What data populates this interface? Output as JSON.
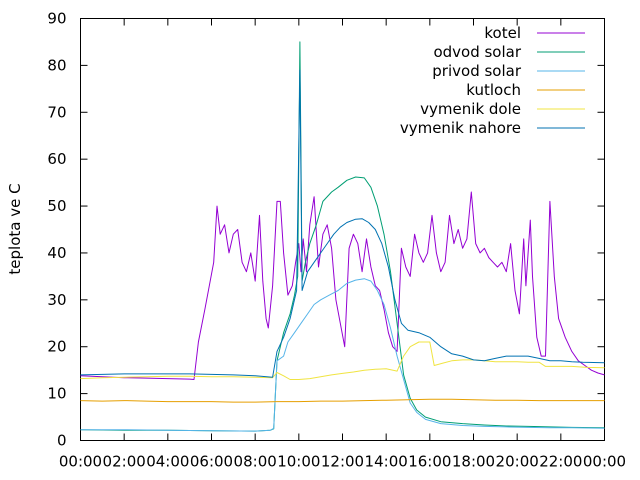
{
  "chart_data": {
    "type": "line",
    "title": "",
    "xlabel": "",
    "ylabel": "teplota ve C",
    "xlim": [
      0,
      24
    ],
    "ylim": [
      0,
      90
    ],
    "grid": false,
    "legend_position": "top-right",
    "x_ticks": [
      "00:00",
      "02:00",
      "04:00",
      "06:00",
      "08:00",
      "10:00",
      "12:00",
      "14:00",
      "16:00",
      "18:00",
      "20:00",
      "22:00",
      "00:00"
    ],
    "y_ticks": [
      "0",
      "10",
      "20",
      "30",
      "40",
      "50",
      "60",
      "70",
      "80",
      "90"
    ],
    "series": [
      {
        "name": "kotel",
        "color": "#9400d3",
        "points": [
          [
            0,
            13.8
          ],
          [
            1,
            13.6
          ],
          [
            2,
            13.4
          ],
          [
            3,
            13.3
          ],
          [
            4,
            13.2
          ],
          [
            5,
            13.1
          ],
          [
            5.2,
            13.0
          ],
          [
            5.4,
            21
          ],
          [
            5.7,
            28
          ],
          [
            5.9,
            33
          ],
          [
            6.1,
            38
          ],
          [
            6.25,
            50
          ],
          [
            6.4,
            44
          ],
          [
            6.6,
            46
          ],
          [
            6.8,
            40
          ],
          [
            7.0,
            44
          ],
          [
            7.2,
            45
          ],
          [
            7.4,
            38
          ],
          [
            7.6,
            36
          ],
          [
            7.8,
            40
          ],
          [
            8.0,
            34
          ],
          [
            8.2,
            48
          ],
          [
            8.35,
            34
          ],
          [
            8.5,
            26
          ],
          [
            8.6,
            24
          ],
          [
            8.8,
            33
          ],
          [
            9.0,
            51
          ],
          [
            9.15,
            51
          ],
          [
            9.3,
            40
          ],
          [
            9.5,
            31
          ],
          [
            9.7,
            33
          ],
          [
            9.85,
            38
          ],
          [
            10.0,
            42
          ],
          [
            10.1,
            36
          ],
          [
            10.2,
            43
          ],
          [
            10.35,
            36
          ],
          [
            10.5,
            46
          ],
          [
            10.7,
            52
          ],
          [
            10.9,
            37
          ],
          [
            11.1,
            44
          ],
          [
            11.3,
            46
          ],
          [
            11.5,
            41
          ],
          [
            11.7,
            30
          ],
          [
            11.9,
            25
          ],
          [
            12.1,
            20
          ],
          [
            12.3,
            41
          ],
          [
            12.5,
            44
          ],
          [
            12.7,
            42
          ],
          [
            12.9,
            36
          ],
          [
            13.1,
            43
          ],
          [
            13.3,
            37
          ],
          [
            13.5,
            33
          ],
          [
            13.7,
            32
          ],
          [
            13.9,
            28
          ],
          [
            14.1,
            23
          ],
          [
            14.3,
            20
          ],
          [
            14.5,
            19
          ],
          [
            14.7,
            41
          ],
          [
            14.9,
            37
          ],
          [
            15.1,
            35
          ],
          [
            15.3,
            44
          ],
          [
            15.5,
            40
          ],
          [
            15.7,
            38
          ],
          [
            15.9,
            40
          ],
          [
            16.1,
            48
          ],
          [
            16.3,
            40
          ],
          [
            16.5,
            36
          ],
          [
            16.7,
            38
          ],
          [
            16.9,
            48
          ],
          [
            17.1,
            42
          ],
          [
            17.3,
            45
          ],
          [
            17.5,
            41
          ],
          [
            17.7,
            43
          ],
          [
            17.9,
            53
          ],
          [
            18.1,
            42
          ],
          [
            18.3,
            40
          ],
          [
            18.5,
            41
          ],
          [
            18.7,
            39
          ],
          [
            18.9,
            38
          ],
          [
            19.1,
            37
          ],
          [
            19.3,
            38
          ],
          [
            19.5,
            36
          ],
          [
            19.7,
            42
          ],
          [
            19.9,
            32
          ],
          [
            20.1,
            27
          ],
          [
            20.3,
            43
          ],
          [
            20.4,
            33
          ],
          [
            20.6,
            47
          ],
          [
            20.7,
            35
          ],
          [
            20.9,
            22
          ],
          [
            21.1,
            18
          ],
          [
            21.3,
            18
          ],
          [
            21.5,
            51
          ],
          [
            21.7,
            35
          ],
          [
            21.9,
            26
          ],
          [
            22.2,
            22
          ],
          [
            22.5,
            19
          ],
          [
            22.8,
            17
          ],
          [
            23.1,
            16
          ],
          [
            23.4,
            15
          ],
          [
            23.7,
            14.4
          ],
          [
            24,
            14.0
          ]
        ]
      },
      {
        "name": "odvod solar",
        "color": "#009e73",
        "points": [
          [
            0,
            2.3
          ],
          [
            2,
            2.2
          ],
          [
            4,
            2.2
          ],
          [
            6,
            2.1
          ],
          [
            8,
            2.0
          ],
          [
            8.7,
            2.2
          ],
          [
            8.85,
            2.5
          ],
          [
            9.0,
            17
          ],
          [
            9.3,
            23
          ],
          [
            9.6,
            27
          ],
          [
            9.8,
            31
          ],
          [
            9.95,
            35
          ],
          [
            10.05,
            85
          ],
          [
            10.15,
            34
          ],
          [
            10.3,
            38
          ],
          [
            10.5,
            42
          ],
          [
            10.8,
            46
          ],
          [
            11.1,
            51
          ],
          [
            11.5,
            53
          ],
          [
            11.8,
            54
          ],
          [
            12.2,
            55.5
          ],
          [
            12.6,
            56.2
          ],
          [
            13.0,
            56
          ],
          [
            13.3,
            54
          ],
          [
            13.6,
            50
          ],
          [
            13.9,
            44
          ],
          [
            14.2,
            36
          ],
          [
            14.5,
            25
          ],
          [
            14.8,
            14
          ],
          [
            15.1,
            9
          ],
          [
            15.4,
            6.5
          ],
          [
            15.8,
            5
          ],
          [
            16.5,
            4
          ],
          [
            17.5,
            3.6
          ],
          [
            18.5,
            3.3
          ],
          [
            19.5,
            3.1
          ],
          [
            20.5,
            3.0
          ],
          [
            21.5,
            2.9
          ],
          [
            22.5,
            2.8
          ],
          [
            24,
            2.7
          ]
        ]
      },
      {
        "name": "privod solar",
        "color": "#56b4e9",
        "points": [
          [
            0,
            2.3
          ],
          [
            2,
            2.3
          ],
          [
            4,
            2.2
          ],
          [
            6,
            2.1
          ],
          [
            8,
            2.0
          ],
          [
            8.7,
            2.2
          ],
          [
            8.85,
            2.6
          ],
          [
            9.0,
            17
          ],
          [
            9.3,
            18
          ],
          [
            9.5,
            21
          ],
          [
            9.8,
            23
          ],
          [
            10.1,
            25
          ],
          [
            10.4,
            27
          ],
          [
            10.7,
            29
          ],
          [
            11.0,
            30
          ],
          [
            11.4,
            31
          ],
          [
            11.8,
            32
          ],
          [
            12.2,
            33.5
          ],
          [
            12.6,
            34.2
          ],
          [
            13.0,
            34.5
          ],
          [
            13.3,
            34
          ],
          [
            13.6,
            32
          ],
          [
            13.9,
            29
          ],
          [
            14.2,
            24
          ],
          [
            14.5,
            18
          ],
          [
            14.8,
            13
          ],
          [
            15.1,
            8
          ],
          [
            15.4,
            6
          ],
          [
            15.8,
            4.5
          ],
          [
            16.5,
            3.6
          ],
          [
            17.5,
            3.2
          ],
          [
            18.5,
            3.0
          ],
          [
            19.5,
            2.9
          ],
          [
            20.5,
            2.8
          ],
          [
            21.5,
            2.7
          ],
          [
            22.5,
            2.7
          ],
          [
            24,
            2.6
          ]
        ]
      },
      {
        "name": "kutloch",
        "color": "#e69f00",
        "points": [
          [
            0,
            8.5
          ],
          [
            1,
            8.4
          ],
          [
            2,
            8.5
          ],
          [
            3,
            8.4
          ],
          [
            4,
            8.3
          ],
          [
            5,
            8.3
          ],
          [
            6,
            8.3
          ],
          [
            7,
            8.2
          ],
          [
            8,
            8.2
          ],
          [
            9,
            8.3
          ],
          [
            10,
            8.3
          ],
          [
            11,
            8.4
          ],
          [
            12,
            8.4
          ],
          [
            13,
            8.5
          ],
          [
            14,
            8.6
          ],
          [
            15,
            8.7
          ],
          [
            16,
            8.8
          ],
          [
            17,
            8.8
          ],
          [
            18,
            8.7
          ],
          [
            19,
            8.6
          ],
          [
            20,
            8.6
          ],
          [
            21,
            8.5
          ],
          [
            22,
            8.5
          ],
          [
            23,
            8.5
          ],
          [
            24,
            8.5
          ]
        ]
      },
      {
        "name": "vymenik dole",
        "color": "#f0e442",
        "points": [
          [
            0,
            13.2
          ],
          [
            1,
            13.4
          ],
          [
            2,
            13.5
          ],
          [
            3,
            13.6
          ],
          [
            4,
            13.7
          ],
          [
            5,
            13.7
          ],
          [
            6,
            13.6
          ],
          [
            7,
            13.6
          ],
          [
            8,
            13.5
          ],
          [
            8.8,
            13.4
          ],
          [
            9.0,
            14.5
          ],
          [
            9.3,
            13.8
          ],
          [
            9.6,
            13.0
          ],
          [
            10.0,
            13.0
          ],
          [
            10.5,
            13.2
          ],
          [
            11.0,
            13.6
          ],
          [
            11.5,
            14.0
          ],
          [
            12.0,
            14.3
          ],
          [
            12.5,
            14.6
          ],
          [
            13.0,
            15.0
          ],
          [
            13.5,
            15.2
          ],
          [
            14.0,
            15.3
          ],
          [
            14.5,
            14.8
          ],
          [
            14.8,
            18
          ],
          [
            15.1,
            20
          ],
          [
            15.5,
            21
          ],
          [
            16.0,
            21
          ],
          [
            16.2,
            16
          ],
          [
            16.6,
            16.5
          ],
          [
            17.0,
            17
          ],
          [
            17.5,
            17.2
          ],
          [
            18.0,
            17.2
          ],
          [
            18.5,
            17.0
          ],
          [
            19.0,
            16.8
          ],
          [
            19.5,
            16.8
          ],
          [
            20.0,
            16.8
          ],
          [
            20.5,
            16.7
          ],
          [
            21.0,
            16.7
          ],
          [
            21.3,
            15.8
          ],
          [
            21.8,
            15.8
          ],
          [
            22.5,
            15.8
          ],
          [
            23.2,
            15.6
          ],
          [
            24,
            15.5
          ]
        ]
      },
      {
        "name": "vymenik nahore",
        "color": "#0072b2",
        "points": [
          [
            0,
            14.0
          ],
          [
            1,
            14.1
          ],
          [
            2,
            14.2
          ],
          [
            3,
            14.2
          ],
          [
            4,
            14.2
          ],
          [
            5,
            14.2
          ],
          [
            6,
            14.1
          ],
          [
            7,
            14.0
          ],
          [
            8,
            13.8
          ],
          [
            8.8,
            13.5
          ],
          [
            9.0,
            19
          ],
          [
            9.3,
            22
          ],
          [
            9.6,
            26
          ],
          [
            9.9,
            32
          ],
          [
            10.05,
            79
          ],
          [
            10.15,
            32
          ],
          [
            10.4,
            36
          ],
          [
            10.7,
            38
          ],
          [
            11.0,
            40
          ],
          [
            11.3,
            42
          ],
          [
            11.6,
            44
          ],
          [
            11.9,
            45.5
          ],
          [
            12.2,
            46.5
          ],
          [
            12.6,
            47.2
          ],
          [
            12.9,
            47.3
          ],
          [
            13.2,
            46.5
          ],
          [
            13.5,
            45
          ],
          [
            13.8,
            42
          ],
          [
            14.1,
            37
          ],
          [
            14.4,
            30
          ],
          [
            14.7,
            25
          ],
          [
            15.0,
            23.5
          ],
          [
            15.5,
            23
          ],
          [
            16.0,
            22
          ],
          [
            16.5,
            20
          ],
          [
            17.0,
            18.5
          ],
          [
            17.5,
            18
          ],
          [
            18.0,
            17.2
          ],
          [
            18.5,
            17.0
          ],
          [
            19.0,
            17.5
          ],
          [
            19.5,
            18.0
          ],
          [
            20.0,
            18.0
          ],
          [
            20.5,
            18.0
          ],
          [
            21.0,
            17.5
          ],
          [
            21.5,
            17.0
          ],
          [
            22.0,
            17.0
          ],
          [
            22.5,
            16.8
          ],
          [
            23.0,
            16.7
          ],
          [
            24,
            16.6
          ]
        ]
      }
    ]
  }
}
